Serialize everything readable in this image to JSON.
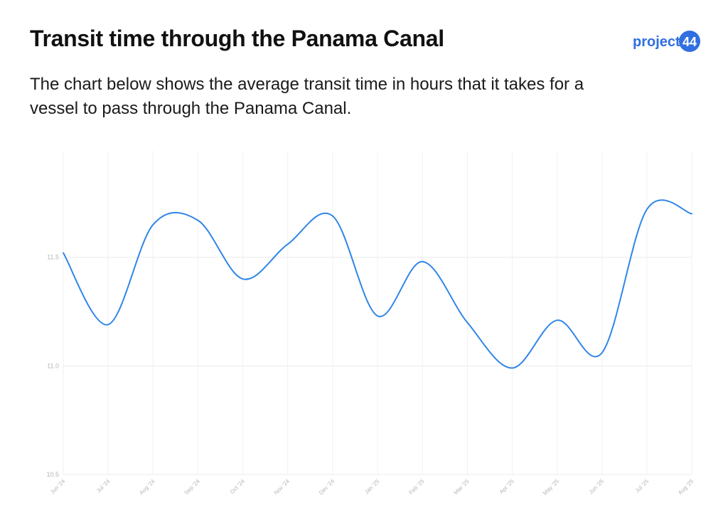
{
  "header": {
    "title": "Transit time through the Panama Canal",
    "subtitle": "The chart below shows the average transit time in hours that it takes for a vessel to pass through the Panama Canal."
  },
  "brand": {
    "logo_text": "project",
    "logo_number": "44",
    "color": "#2F6FE0"
  },
  "chart_data": {
    "type": "line",
    "title": "",
    "xlabel": "",
    "ylabel": "",
    "x": [
      "Jun '24",
      "Jul '24",
      "Aug '24",
      "Sep '24",
      "Oct '24",
      "Nov '24",
      "Dec '24",
      "Jan '25",
      "Feb '25",
      "Mar '25",
      "Apr '25",
      "May '25",
      "Jun '25",
      "Jul '25",
      "Aug '25"
    ],
    "series": [
      {
        "values": [
          11.52,
          11.19,
          11.65,
          11.67,
          11.4,
          11.56,
          11.69,
          11.23,
          11.48,
          11.2,
          10.99,
          11.21,
          11.06,
          11.72,
          11.7
        ],
        "color": "#2F86E8"
      }
    ],
    "ylim": [
      10.5,
      11.99
    ],
    "yticks": [
      "10.5",
      "11.0",
      "11.5"
    ],
    "grid": true,
    "legend": "none"
  }
}
